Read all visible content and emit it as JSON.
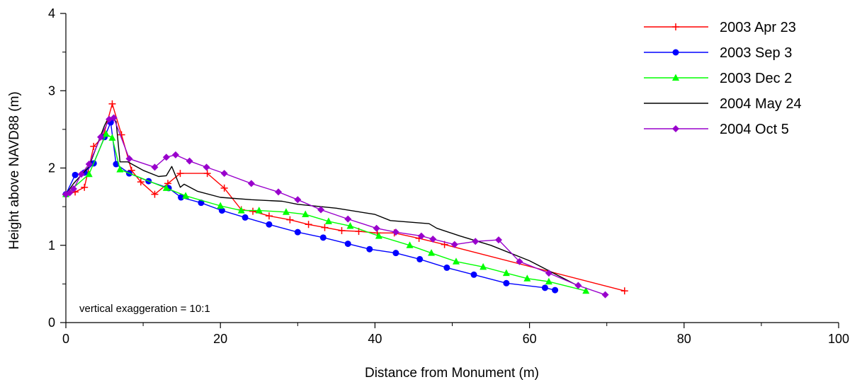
{
  "chart_data": {
    "type": "line",
    "xlabel": "Distance from Monument (m)",
    "ylabel": "Height above NAVD88 (m)",
    "xlim": [
      0,
      100
    ],
    "ylim": [
      0,
      4
    ],
    "xticks": [
      0,
      20,
      40,
      60,
      80,
      100
    ],
    "yticks": [
      0,
      1,
      2,
      3,
      4
    ],
    "legend_position": "top-right",
    "grid": false,
    "annotation": "vertical exaggeration = 10:1",
    "series": [
      {
        "name": "2003 Apr 23",
        "color": "#ff0000",
        "marker": "plus",
        "x": [
          0,
          1.2,
          2.4,
          3.6,
          4.8,
          6.0,
          7.2,
          8.5,
          9.7,
          11.5,
          13.2,
          14.8,
          18.3,
          20.5,
          22.7,
          24.2,
          26.3,
          29.0,
          31.4,
          33.5,
          35.7,
          37.9,
          40.3,
          42.5,
          45.7,
          49.0,
          72.3
        ],
        "y": [
          1.66,
          1.69,
          1.75,
          2.28,
          2.4,
          2.83,
          2.43,
          1.97,
          1.82,
          1.66,
          1.8,
          1.93,
          1.93,
          1.74,
          1.46,
          1.44,
          1.38,
          1.33,
          1.27,
          1.23,
          1.19,
          1.18,
          1.16,
          1.16,
          1.09,
          1.01,
          0.41
        ]
      },
      {
        "name": "2003 Sep 3",
        "color": "#0000ff",
        "marker": "circle",
        "x": [
          0,
          1.2,
          2.4,
          3.6,
          5.0,
          5.8,
          6.5,
          8.2,
          10.7,
          13.3,
          14.9,
          17.5,
          20.2,
          23.2,
          26.3,
          30.0,
          33.3,
          36.5,
          39.3,
          42.7,
          45.8,
          49.3,
          52.8,
          57.0,
          62.0,
          63.3
        ],
        "y": [
          1.66,
          1.91,
          1.94,
          2.06,
          2.4,
          2.59,
          2.05,
          1.93,
          1.83,
          1.74,
          1.62,
          1.55,
          1.45,
          1.36,
          1.27,
          1.17,
          1.1,
          1.02,
          0.95,
          0.9,
          0.82,
          0.71,
          0.62,
          0.51,
          0.45,
          0.42
        ]
      },
      {
        "name": "2003 Dec 2",
        "color": "#00ff00",
        "marker": "triangle",
        "x": [
          0,
          3.0,
          5.2,
          6.0,
          7.0,
          13.0,
          15.5,
          20.0,
          22.7,
          25.0,
          28.5,
          31.0,
          34.0,
          36.8,
          40.5,
          44.5,
          47.3,
          50.5,
          54.0,
          57.0,
          59.7,
          62.5,
          67.3
        ],
        "y": [
          1.66,
          1.92,
          2.44,
          2.39,
          1.98,
          1.74,
          1.64,
          1.51,
          1.45,
          1.45,
          1.43,
          1.4,
          1.31,
          1.25,
          1.12,
          1.0,
          0.9,
          0.79,
          0.72,
          0.64,
          0.57,
          0.53,
          0.41
        ]
      },
      {
        "name": "2004 May 24",
        "color": "#000000",
        "marker": "none",
        "x": [
          0,
          1.0,
          3.0,
          5.0,
          5.5,
          6.0,
          6.5,
          7.0,
          8.0,
          10.0,
          12.0,
          13.0,
          13.7,
          14.2,
          14.8,
          15.3,
          17.0,
          20.0,
          24.0,
          28.0,
          30.0,
          35.0,
          40.0,
          42.0,
          47.0,
          48.0,
          51.0,
          55.0,
          60.0,
          66.0
        ],
        "y": [
          1.66,
          1.8,
          2.02,
          2.55,
          2.65,
          2.65,
          2.6,
          2.08,
          2.08,
          1.97,
          1.89,
          1.9,
          2.02,
          1.9,
          1.75,
          1.79,
          1.7,
          1.62,
          1.59,
          1.57,
          1.53,
          1.48,
          1.4,
          1.32,
          1.28,
          1.22,
          1.12,
          1.0,
          0.8,
          0.49
        ]
      },
      {
        "name": "2004 Oct 5",
        "color": "#9900cc",
        "marker": "diamond",
        "x": [
          0,
          0.5,
          1.0,
          2.0,
          3.0,
          4.5,
          5.6,
          6.2,
          8.2,
          11.5,
          13.0,
          14.2,
          16.0,
          18.2,
          20.5,
          24.0,
          27.5,
          30.0,
          33.0,
          36.5,
          40.2,
          42.7,
          46.0,
          47.5,
          50.3,
          53.0,
          56.0,
          58.7,
          62.5,
          66.3,
          69.8
        ],
        "y": [
          1.66,
          1.68,
          1.73,
          1.92,
          2.05,
          2.4,
          2.63,
          2.65,
          2.12,
          2.01,
          2.14,
          2.17,
          2.09,
          2.01,
          1.93,
          1.8,
          1.69,
          1.59,
          1.46,
          1.34,
          1.22,
          1.17,
          1.12,
          1.08,
          1.01,
          1.05,
          1.07,
          0.79,
          0.64,
          0.48,
          0.36
        ]
      }
    ]
  }
}
